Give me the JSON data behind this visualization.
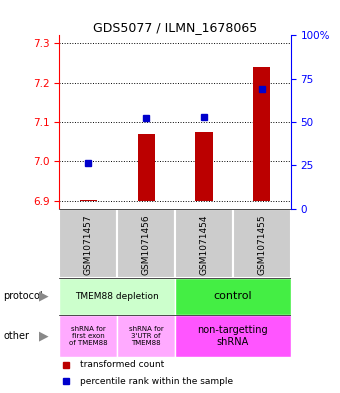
{
  "title": "GDS5077 / ILMN_1678065",
  "categories": [
    "GSM1071457",
    "GSM1071456",
    "GSM1071454",
    "GSM1071455"
  ],
  "bar_values": [
    6.902,
    7.07,
    7.075,
    7.24
  ],
  "bar_base": 6.9,
  "dot_percentiles": [
    26,
    52,
    53,
    69
  ],
  "ylim": [
    6.88,
    7.32
  ],
  "yticks_left": [
    6.9,
    7.0,
    7.1,
    7.2,
    7.3
  ],
  "yticks_right": [
    0,
    25,
    50,
    75,
    100
  ],
  "bar_color": "#bb0000",
  "dot_color": "#0000cc",
  "protocol_labels": [
    "TMEM88 depletion",
    "control"
  ],
  "protocol_color_left": "#ccffcc",
  "protocol_color_right": "#44ee44",
  "other_labels_left1": "shRNA for\nfirst exon\nof TMEM88",
  "other_labels_left2": "shRNA for\n3'UTR of\nTMEM88",
  "other_label_right": "non-targetting\nshRNA",
  "other_color_left": "#ffaaff",
  "other_color_right": "#ff55ff",
  "sample_bg_color": "#cccccc",
  "sample_border_color": "#ffffff",
  "legend_red_label": "transformed count",
  "legend_blue_label": "percentile rank within the sample",
  "bar_width": 0.3
}
